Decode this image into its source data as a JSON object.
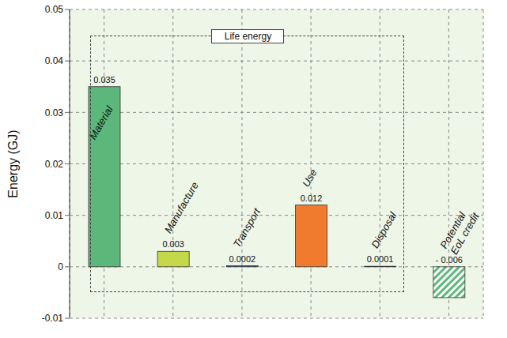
{
  "chart_data": {
    "type": "bar",
    "categories": [
      "Material",
      "Manufacture",
      "Transport",
      "Use",
      "Disposal",
      "Potential EoL credit"
    ],
    "values": [
      0.035,
      0.003,
      0.0002,
      0.012,
      0.0001,
      -0.006
    ],
    "value_labels": [
      "0.035",
      "0.003",
      "0.0002",
      "0.012",
      "0.0001",
      "- 0.006"
    ],
    "colors": [
      "#5cb87a",
      "#c5d84a",
      "#2b4f7e",
      "#f07a2e",
      "#8a8a8a",
      "#5cb87a"
    ],
    "y_label": "Energy (GJ)",
    "ylim": [
      -0.01,
      0.05
    ],
    "yticks": [
      -0.01,
      0,
      0.01,
      0.02,
      0.03,
      0.04,
      0.05
    ],
    "grid": true,
    "data_labels": true,
    "tick_labels": "y",
    "annotations": [
      "Life energy"
    ]
  }
}
